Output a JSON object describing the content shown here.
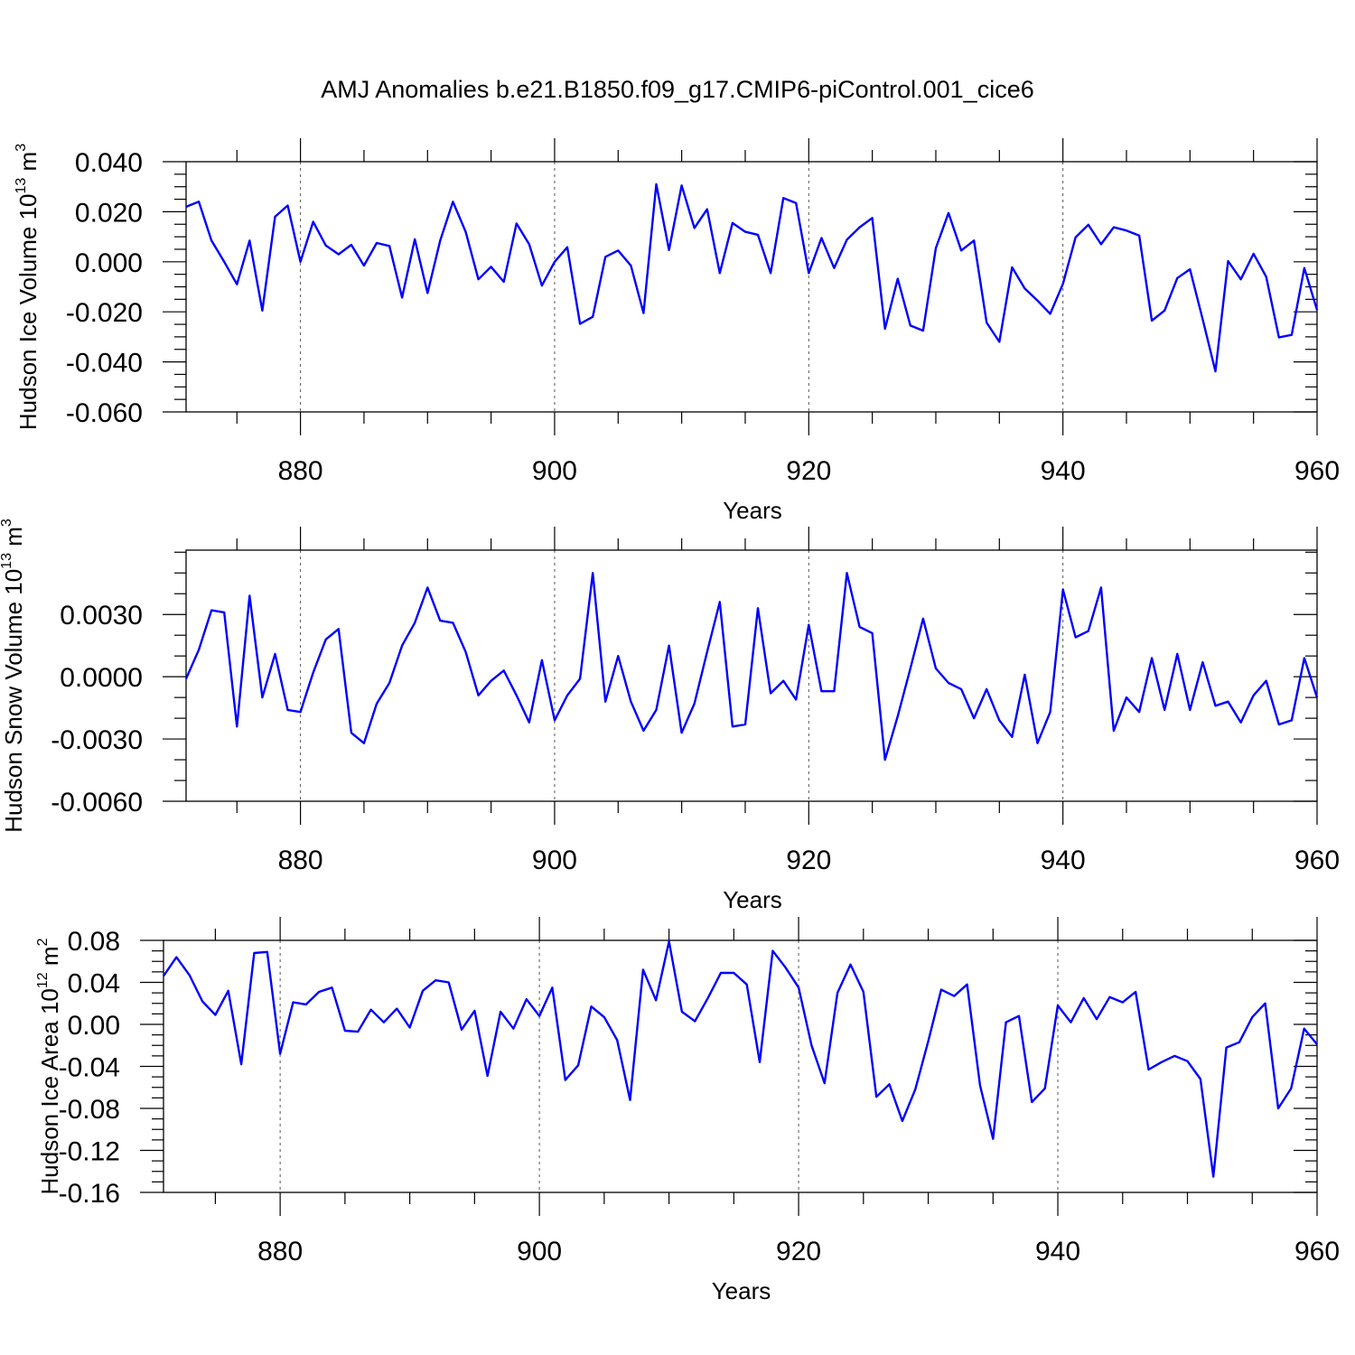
{
  "title": "AMJ Anomalies b.e21.B1850.f09_g17.CMIP6-piControl.001_cice6",
  "chart_data": [
    {
      "type": "line",
      "title": "",
      "xlabel": "Years",
      "ylabel": "Hudson Ice Volume 10",
      "ylabel_exp": "13",
      "ylabel_unit": " m",
      "ylabel_unit_exp": "3",
      "xlim": [
        871,
        960
      ],
      "ylim": [
        -0.06,
        0.04
      ],
      "xticks": [
        880,
        900,
        920,
        940,
        960
      ],
      "xtick_labels": [
        "880",
        "900",
        "920",
        "940",
        "960"
      ],
      "yticks": [
        0.04,
        0.02,
        0.0,
        -0.02,
        -0.04,
        -0.06
      ],
      "ytick_labels": [
        "0.040",
        "0.020",
        "0.000",
        "-0.020",
        "-0.040",
        "-0.060"
      ],
      "yminor": 0.005,
      "xminor": 5,
      "grid": "vertical dashed at major x ticks",
      "color": "#0000ff",
      "x_start": 871,
      "values": [
        0.022,
        0.024,
        0.0085,
        0.0,
        -0.009,
        0.0085,
        -0.0195,
        0.018,
        0.0225,
        0.0,
        0.016,
        0.0065,
        0.003,
        0.0068,
        -0.0015,
        0.0075,
        0.0063,
        -0.0143,
        0.009,
        -0.0125,
        0.0085,
        0.024,
        0.012,
        -0.007,
        -0.002,
        -0.008,
        0.0153,
        0.007,
        -0.0095,
        0.0,
        0.0058,
        -0.0248,
        -0.022,
        0.002,
        0.0045,
        -0.0015,
        -0.0205,
        0.031,
        0.0047,
        0.0305,
        0.0135,
        0.021,
        -0.0045,
        0.0155,
        0.012,
        0.0108,
        -0.0045,
        0.0255,
        0.0235,
        -0.0045,
        0.0095,
        -0.0025,
        0.0088,
        0.0138,
        0.0175,
        -0.0268,
        -0.0068,
        -0.0255,
        -0.0275,
        0.0055,
        0.0195,
        0.0045,
        0.0085,
        -0.0243,
        -0.032,
        -0.0022,
        -0.0107,
        -0.0155,
        -0.0208,
        -0.0088,
        0.0098,
        0.0148,
        0.007,
        0.0138,
        0.0125,
        0.0105,
        -0.0235,
        -0.0195,
        -0.0065,
        -0.003,
        -0.023,
        -0.0438,
        0.0003,
        -0.007,
        0.0032,
        -0.006,
        -0.0302,
        -0.0292,
        -0.0025,
        -0.0193
      ]
    },
    {
      "type": "line",
      "title": "",
      "xlabel": "Years",
      "ylabel": "Hudson Snow Volume 10",
      "ylabel_exp": "13",
      "ylabel_unit": " m",
      "ylabel_unit_exp": "3",
      "xlim": [
        871,
        960
      ],
      "ylim": [
        -0.006,
        0.0061
      ],
      "xticks": [
        880,
        900,
        920,
        940,
        960
      ],
      "xtick_labels": [
        "880",
        "900",
        "920",
        "940",
        "960"
      ],
      "yticks": [
        0.003,
        0.0,
        -0.003,
        -0.006
      ],
      "ytick_labels": [
        "0.0030",
        "0.0000",
        "-0.0030",
        "-0.0060"
      ],
      "yminor": 0.001,
      "xminor": 5,
      "grid": "vertical dashed at major x ticks",
      "color": "#0000ff",
      "x_start": 871,
      "values": [
        -0.0001,
        0.0013,
        0.0032,
        0.0031,
        -0.0024,
        0.0039,
        -0.001,
        0.0011,
        -0.0016,
        -0.0017,
        0.0002,
        0.0018,
        0.0023,
        -0.0027,
        -0.0032,
        -0.0013,
        -0.0003,
        0.0015,
        0.0026,
        0.0043,
        0.0027,
        0.0026,
        0.0012,
        -0.0009,
        -0.0002,
        0.0003,
        -0.0009,
        -0.0022,
        0.0008,
        -0.0021,
        -0.0009,
        -0.0001,
        0.005,
        -0.0012,
        0.001,
        -0.0012,
        -0.0026,
        -0.0016,
        0.0015,
        -0.0027,
        -0.0013,
        0.0012,
        0.0036,
        -0.0024,
        -0.0023,
        0.0033,
        -0.0008,
        -0.0002,
        -0.0011,
        0.0025,
        -0.0007,
        -0.0007,
        0.005,
        0.0024,
        0.0021,
        -0.004,
        -0.0019,
        0.0004,
        0.0028,
        0.0004,
        -0.0003,
        -0.0006,
        -0.002,
        -0.0006,
        -0.0021,
        -0.0029,
        0.0001,
        -0.0032,
        -0.0017,
        0.0042,
        0.0019,
        0.0022,
        0.0043,
        -0.0026,
        -0.001,
        -0.0017,
        0.0009,
        -0.0016,
        0.0011,
        -0.0016,
        0.0007,
        -0.0014,
        -0.0012,
        -0.0022,
        -0.0009,
        -0.0002,
        -0.0023,
        -0.0021,
        0.0009,
        -0.001
      ]
    },
    {
      "type": "line",
      "title": "",
      "xlabel": "Years",
      "ylabel": "Hudson Ice Area 10",
      "ylabel_exp": "12",
      "ylabel_unit": " m",
      "ylabel_unit_exp": "2",
      "xlim": [
        871,
        960
      ],
      "ylim": [
        -0.16,
        0.08
      ],
      "xticks": [
        880,
        900,
        920,
        940,
        960
      ],
      "xtick_labels": [
        "880",
        "900",
        "920",
        "940",
        "960"
      ],
      "yticks": [
        0.08,
        0.04,
        0.0,
        -0.04,
        -0.08,
        -0.12,
        -0.16
      ],
      "ytick_labels": [
        "0.08",
        "0.04",
        "0.00",
        "-0.04",
        "-0.08",
        "-0.12",
        "-0.16"
      ],
      "yminor": 0.01,
      "xminor": 5,
      "grid": "vertical dashed at major x ticks",
      "color": "#0000ff",
      "x_start": 871,
      "values": [
        0.046,
        0.064,
        0.047,
        0.022,
        0.009,
        0.032,
        -0.038,
        0.068,
        0.069,
        -0.028,
        0.021,
        0.019,
        0.031,
        0.035,
        -0.006,
        -0.007,
        0.014,
        0.002,
        0.015,
        -0.003,
        0.032,
        0.042,
        0.04,
        -0.005,
        0.013,
        -0.049,
        0.012,
        -0.004,
        0.024,
        0.008,
        0.035,
        -0.053,
        -0.039,
        0.017,
        0.007,
        -0.015,
        -0.072,
        0.052,
        0.023,
        0.079,
        0.012,
        0.003,
        0.025,
        0.049,
        0.049,
        0.038,
        -0.036,
        0.07,
        0.054,
        0.035,
        -0.02,
        -0.056,
        0.03,
        0.057,
        0.031,
        -0.069,
        -0.057,
        -0.092,
        -0.062,
        -0.016,
        0.033,
        0.027,
        0.038,
        -0.058,
        -0.109,
        0.002,
        0.008,
        -0.074,
        -0.061,
        0.018,
        0.002,
        0.025,
        0.005,
        0.026,
        0.021,
        0.031,
        -0.043,
        -0.036,
        -0.03,
        -0.035,
        -0.052,
        -0.145,
        -0.022,
        -0.017,
        0.007,
        0.02,
        -0.08,
        -0.061,
        -0.004,
        -0.019
      ]
    }
  ]
}
